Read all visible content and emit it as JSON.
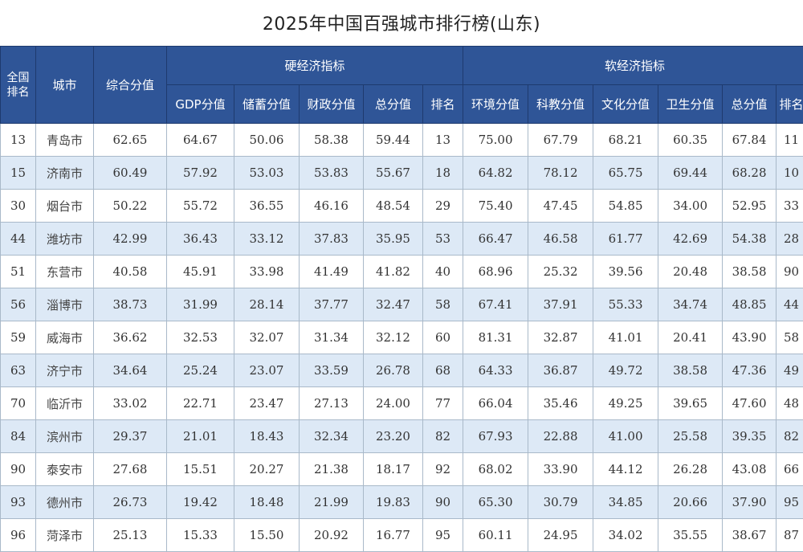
{
  "title": "2025年中国百强城市排行榜(山东)",
  "headers": {
    "national_rank": "全国排名",
    "city": "城市",
    "composite_score": "综合分值",
    "hard_group": "硬经济指标",
    "soft_group": "软经济指标",
    "hard": [
      "GDP分值",
      "储蓄分值",
      "财政分值",
      "总分值",
      "排名"
    ],
    "soft": [
      "环境分值",
      "科教分值",
      "文化分值",
      "卫生分值",
      "总分值",
      "排名"
    ]
  },
  "rows": [
    {
      "rank": "13",
      "city": "青岛市",
      "score": "62.65",
      "hard": [
        "64.67",
        "50.06",
        "58.38",
        "59.44",
        "13"
      ],
      "soft": [
        "75.00",
        "67.79",
        "68.21",
        "60.35",
        "67.84",
        "11"
      ]
    },
    {
      "rank": "15",
      "city": "济南市",
      "score": "60.49",
      "hard": [
        "57.92",
        "53.03",
        "53.83",
        "55.67",
        "18"
      ],
      "soft": [
        "64.82",
        "78.12",
        "65.75",
        "69.44",
        "68.28",
        "10"
      ]
    },
    {
      "rank": "30",
      "city": "烟台市",
      "score": "50.22",
      "hard": [
        "55.72",
        "36.55",
        "46.16",
        "48.54",
        "29"
      ],
      "soft": [
        "75.40",
        "47.45",
        "54.85",
        "34.00",
        "52.95",
        "33"
      ]
    },
    {
      "rank": "44",
      "city": "潍坊市",
      "score": "42.99",
      "hard": [
        "36.43",
        "33.12",
        "37.83",
        "35.95",
        "53"
      ],
      "soft": [
        "66.47",
        "46.58",
        "61.77",
        "42.69",
        "54.38",
        "28"
      ]
    },
    {
      "rank": "51",
      "city": "东营市",
      "score": "40.58",
      "hard": [
        "45.91",
        "33.98",
        "41.49",
        "41.82",
        "40"
      ],
      "soft": [
        "68.96",
        "25.32",
        "39.56",
        "20.48",
        "38.58",
        "90"
      ]
    },
    {
      "rank": "56",
      "city": "淄博市",
      "score": "38.73",
      "hard": [
        "31.99",
        "28.14",
        "37.77",
        "32.47",
        "58"
      ],
      "soft": [
        "67.41",
        "37.91",
        "55.33",
        "34.74",
        "48.85",
        "44"
      ]
    },
    {
      "rank": "59",
      "city": "威海市",
      "score": "36.62",
      "hard": [
        "32.53",
        "32.07",
        "31.34",
        "32.12",
        "60"
      ],
      "soft": [
        "81.31",
        "32.87",
        "41.01",
        "20.41",
        "43.90",
        "58"
      ]
    },
    {
      "rank": "63",
      "city": "济宁市",
      "score": "34.64",
      "hard": [
        "25.24",
        "23.07",
        "33.59",
        "26.78",
        "68"
      ],
      "soft": [
        "64.33",
        "36.87",
        "49.72",
        "38.58",
        "47.36",
        "49"
      ]
    },
    {
      "rank": "70",
      "city": "临沂市",
      "score": "33.02",
      "hard": [
        "22.71",
        "23.47",
        "27.13",
        "24.00",
        "77"
      ],
      "soft": [
        "66.04",
        "35.46",
        "49.25",
        "39.65",
        "47.60",
        "48"
      ]
    },
    {
      "rank": "84",
      "city": "滨州市",
      "score": "29.37",
      "hard": [
        "21.01",
        "18.43",
        "32.34",
        "23.20",
        "82"
      ],
      "soft": [
        "67.93",
        "22.88",
        "41.00",
        "25.58",
        "39.35",
        "82"
      ]
    },
    {
      "rank": "90",
      "city": "泰安市",
      "score": "27.68",
      "hard": [
        "15.51",
        "20.27",
        "21.38",
        "18.17",
        "92"
      ],
      "soft": [
        "68.02",
        "33.90",
        "44.12",
        "26.28",
        "43.08",
        "66"
      ]
    },
    {
      "rank": "93",
      "city": "德州市",
      "score": "26.73",
      "hard": [
        "19.42",
        "18.48",
        "21.99",
        "19.83",
        "90"
      ],
      "soft": [
        "65.30",
        "30.79",
        "34.85",
        "20.66",
        "37.90",
        "95"
      ]
    },
    {
      "rank": "96",
      "city": "菏泽市",
      "score": "25.13",
      "hard": [
        "15.33",
        "15.50",
        "20.92",
        "16.77",
        "95"
      ],
      "soft": [
        "60.11",
        "24.95",
        "34.02",
        "35.55",
        "38.67",
        "87"
      ]
    }
  ],
  "colors": {
    "header_bg": "#2f5597",
    "alt_row_bg": "#dde9f6",
    "row_bg": "#ffffff"
  }
}
